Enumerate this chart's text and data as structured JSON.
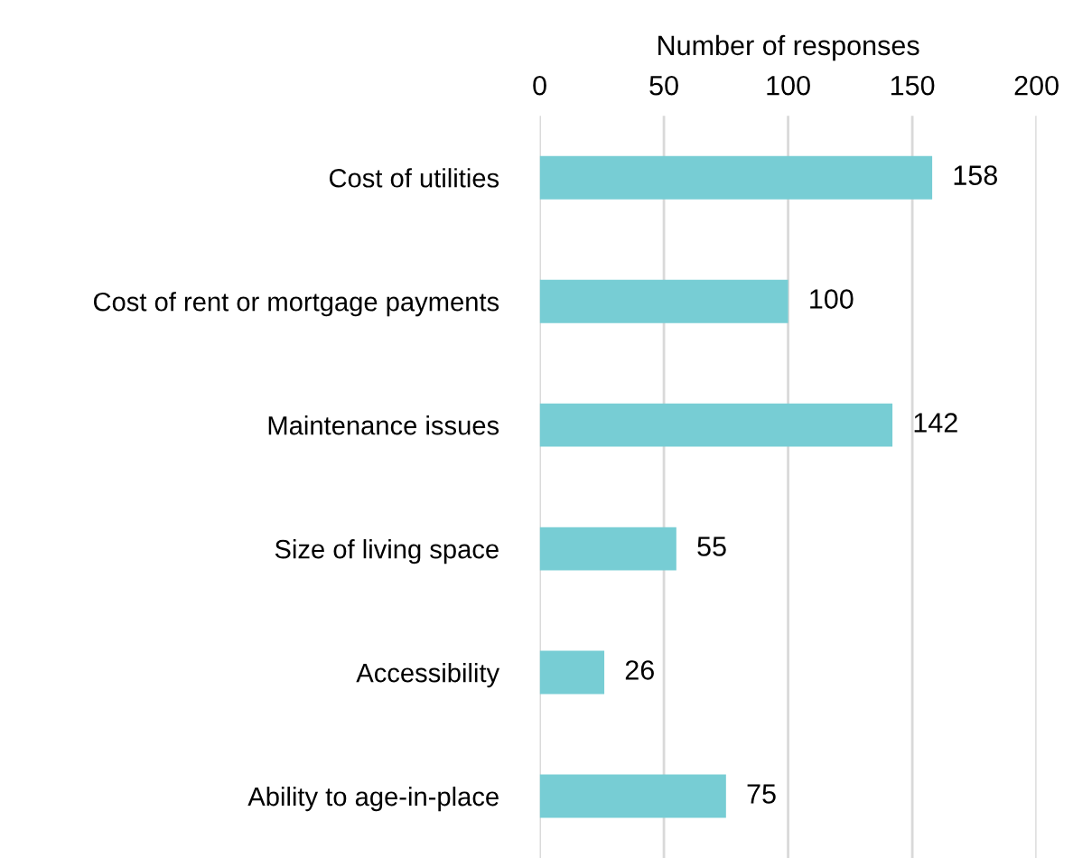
{
  "chart_data": {
    "type": "bar",
    "orientation": "horizontal",
    "xlabel": "Number of responses",
    "categories": [
      "Cost of utilities",
      "Cost of rent or mortgage payments",
      "Maintenance issues",
      "Size of living space",
      "Accessibility",
      "Ability to age-in-place"
    ],
    "values": [
      158,
      100,
      142,
      55,
      26,
      75
    ],
    "color": "#77cdd4",
    "data_labels": true,
    "xlim": [
      0,
      200
    ],
    "xticks": [
      0,
      50,
      100,
      150,
      200
    ],
    "grid": "x",
    "legend": false
  }
}
